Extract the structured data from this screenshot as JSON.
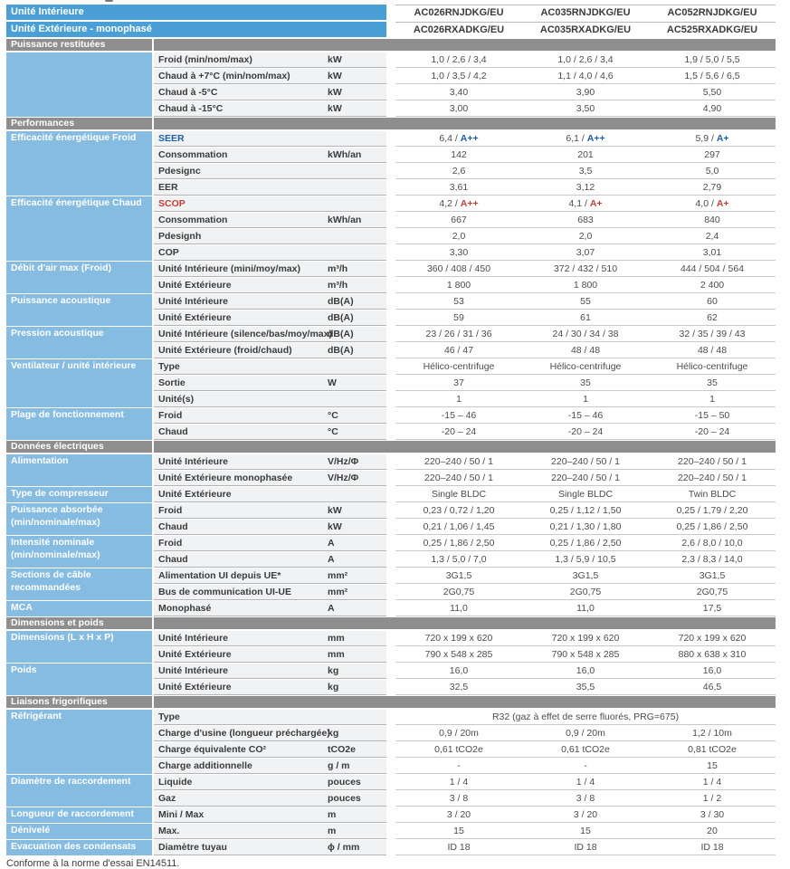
{
  "colors": {
    "header_blue": "#4AA0D6",
    "category_blue": "#86BCE2",
    "section_gray": "#8E8E8E",
    "seer_blue": "#1E5EA9",
    "scop_red": "#C2403A"
  },
  "header": {
    "indoor_label": "Unité Intérieure",
    "outdoor_label": "Unité Extérieure - monophasé",
    "indoor_models": [
      "AC026RNJDKG/EU",
      "AC035RNJDKG/EU",
      "AC052RNJDKG/EU"
    ],
    "outdoor_models": [
      "AC026RXADKG/EU",
      "AC035RXADKG/EU",
      "AC525RXADKG/EU"
    ]
  },
  "footer_note": "Conforme à la norme d'essai EN14511.",
  "sections": [
    {
      "title": "Puissance restituées",
      "groups": [
        {
          "category": "",
          "rows": [
            {
              "label": "Froid (min/nom/max)",
              "unit": "kW",
              "values": [
                "1,0 / 2,6 / 3,4",
                "1,0 / 2,6 / 3,4",
                "1,9 / 5,0 / 5,5"
              ]
            },
            {
              "label": "Chaud à +7°C (min/nom/max)",
              "unit": "kW",
              "values": [
                "1,0 / 3,5 / 4,2",
                "1,1 / 4,0 / 4,6",
                "1,5 / 5,6 / 6,5"
              ]
            },
            {
              "label": "Chaud à -5°C",
              "unit": "kW",
              "values": [
                "3,40",
                "3,90",
                "5,50"
              ]
            },
            {
              "label": "Chaud à -15°C",
              "unit": "kW",
              "values": [
                "3,00",
                "3,50",
                "4,90"
              ]
            }
          ]
        }
      ]
    },
    {
      "title": "Performances",
      "groups": [
        {
          "category": "Efficacité énergétique Froid",
          "rows": [
            {
              "label": "SEER",
              "label_class": "seer-label",
              "unit": "",
              "value_pre": [
                "6,4",
                "6,1",
                "5,9"
              ],
              "grades": [
                "A++",
                "A++",
                "A+"
              ],
              "grade_class": "seer"
            },
            {
              "label": "Consommation",
              "unit": "kWh/an",
              "values": [
                "142",
                "201",
                "297"
              ]
            },
            {
              "label": "Pdesignc",
              "unit": "",
              "values": [
                "2,6",
                "3,5",
                "5,0"
              ]
            },
            {
              "label": "EER",
              "unit": "",
              "values": [
                "3,61",
                "3,12",
                "2,79"
              ]
            }
          ]
        },
        {
          "category": "Efficacité énergétique Chaud",
          "rows": [
            {
              "label": "SCOP",
              "label_class": "scop-label",
              "unit": "",
              "value_pre": [
                "4,2",
                "4,1",
                "4,0"
              ],
              "grades": [
                "A++",
                "A+",
                "A+"
              ],
              "grade_class": "scop"
            },
            {
              "label": "Consommation",
              "unit": "kWh/an",
              "values": [
                "667",
                "683",
                "840"
              ]
            },
            {
              "label": "Pdesignh",
              "unit": "",
              "values": [
                "2,0",
                "2,0",
                "2,4"
              ]
            },
            {
              "label": "COP",
              "unit": "",
              "values": [
                "3,30",
                "3,07",
                "3,01"
              ]
            }
          ]
        },
        {
          "category": "Débit d'air max (Froid)",
          "rows": [
            {
              "label": "Unité Intérieure (mini/moy/max)",
              "unit": "m³/h",
              "values": [
                "360 / 408 / 450",
                "372 / 432 / 510",
                "444 / 504 / 564"
              ]
            },
            {
              "label": "Unité Extérieure",
              "unit": "m³/h",
              "values": [
                "1 800",
                "1 800",
                "2 400"
              ]
            }
          ]
        },
        {
          "category": "Puissance acoustique",
          "rows": [
            {
              "label": "Unité Intérieure",
              "unit": "dB(A)",
              "values": [
                "53",
                "55",
                "60"
              ]
            },
            {
              "label": "Unité Extérieure",
              "unit": "dB(A)",
              "values": [
                "59",
                "61",
                "62"
              ]
            }
          ]
        },
        {
          "category": "Pression acoustique",
          "rows": [
            {
              "label": "Unité Intérieure (silence/bas/moy/max)",
              "unit": "dB(A)",
              "values": [
                "23 / 26 / 31 / 36",
                "24 / 30 / 34 / 38",
                "32 / 35 / 39 / 43"
              ]
            },
            {
              "label": "Unité Extérieure (froid/chaud)",
              "unit": "dB(A)",
              "values": [
                "46 / 47",
                "48 / 48",
                "48 / 48"
              ]
            }
          ]
        },
        {
          "category": "Ventilateur / unité intérieure",
          "rows": [
            {
              "label": "Type",
              "unit": "",
              "values": [
                "Hélico-centrifuge",
                "Hélico-centrifuge",
                "Hélico-centrifuge"
              ]
            },
            {
              "label": "Sortie",
              "unit": "W",
              "values": [
                "37",
                "35",
                "35"
              ]
            },
            {
              "label": "Unité(s)",
              "unit": "",
              "values": [
                "1",
                "1",
                "1"
              ]
            }
          ]
        },
        {
          "category": "Plage de fonctionnement",
          "rows": [
            {
              "label": "Froid",
              "unit": "°C",
              "values": [
                "-15 – 46",
                "-15 – 46",
                "-15 – 50"
              ]
            },
            {
              "label": "Chaud",
              "unit": "°C",
              "values": [
                "-20 – 24",
                "-20 – 24",
                "-20 – 24"
              ]
            }
          ]
        }
      ]
    },
    {
      "title": "Données électriques",
      "groups": [
        {
          "category": "Alimentation",
          "rows": [
            {
              "label": "Unité Intérieure",
              "unit": "V/Hz/Φ",
              "values": [
                "220–240 / 50 / 1",
                "220–240 / 50 / 1",
                "220–240 / 50 / 1"
              ]
            },
            {
              "label": "Unité Extérieure monophasée",
              "unit": "V/Hz/Φ",
              "values": [
                "220–240 / 50 / 1",
                "220–240 / 50 / 1",
                "220–240 / 50 / 1"
              ]
            }
          ]
        },
        {
          "category": "Type de compresseur",
          "rows": [
            {
              "label": "Unité Extérieure",
              "unit": "",
              "values": [
                "Single BLDC",
                "Single BLDC",
                "Twin BLDC"
              ]
            }
          ]
        },
        {
          "category": "Puissance absorbée (min/nominale/max)",
          "rows": [
            {
              "label": "Froid",
              "unit": "kW",
              "values": [
                "0,23 / 0,72 / 1,20",
                "0,25 / 1,12 / 1,50",
                "0,25 / 1,79 / 2,20"
              ]
            },
            {
              "label": "Chaud",
              "unit": "kW",
              "values": [
                "0,21 / 1,06 / 1,45",
                "0,21 / 1,30 / 1,80",
                "0,25 / 1,86 / 2,50"
              ]
            }
          ]
        },
        {
          "category": "Intensité nominale (min/nominale/max)",
          "rows": [
            {
              "label": "Froid",
              "unit": "A",
              "values": [
                "0,25 / 1,86 / 2,50",
                "0,25 / 1,86 / 2,50",
                "2,6 / 8,0 / 10,0"
              ]
            },
            {
              "label": "Chaud",
              "unit": "A",
              "values": [
                "1,3 / 5,0 / 7,0",
                "1,3 / 5,9 / 10,5",
                "2,3 / 8,3 / 14,0"
              ]
            }
          ]
        },
        {
          "category": "Sections de câble recommandées",
          "rows": [
            {
              "label": "Alimentation UI depuis UE*",
              "unit": "mm²",
              "values": [
                "3G1,5",
                "3G1,5",
                "3G1,5"
              ]
            },
            {
              "label": "Bus de communication UI-UE",
              "unit": "mm²",
              "values": [
                "2G0,75",
                "2G0,75",
                "2G0,75"
              ]
            }
          ]
        },
        {
          "category": "MCA",
          "rows": [
            {
              "label": "Monophasé",
              "unit": "A",
              "values": [
                "11,0",
                "11,0",
                "17,5"
              ]
            }
          ]
        }
      ]
    },
    {
      "title": "Dimensions et poids",
      "groups": [
        {
          "category": "Dimensions  (L x H x P)",
          "rows": [
            {
              "label": "Unité Intérieure",
              "unit": "mm",
              "values": [
                "720 x 199 x 620",
                "720 x 199 x 620",
                "720 x 199 x 620"
              ]
            },
            {
              "label": "Unité Extérieure",
              "unit": "mm",
              "values": [
                "790 x 548 x 285",
                "790 x 548 x 285",
                "880 x 638 x 310"
              ]
            }
          ]
        },
        {
          "category": "Poids",
          "rows": [
            {
              "label": "Unité Intérieure",
              "unit": "kg",
              "values": [
                "16,0",
                "16,0",
                "16,0"
              ]
            },
            {
              "label": "Unité Extérieure",
              "unit": "kg",
              "values": [
                "32,5",
                "35,5",
                "46,5"
              ]
            }
          ]
        }
      ]
    },
    {
      "title": "Liaisons frigorifiques",
      "groups": [
        {
          "category": "Réfrigérant",
          "rows": [
            {
              "label": "Type",
              "unit": "",
              "span_value": "R32 (gaz à effet de serre fluorés, PRG=675)"
            },
            {
              "label": "Charge d'usine (longueur préchargée)",
              "unit": "kg",
              "values": [
                "0,9 / 20m",
                "0,9 / 20m",
                "1,2 / 10m"
              ]
            },
            {
              "label": "Charge équivalente CO²",
              "unit": "tCO2e",
              "values": [
                "0,61 tCO2e",
                "0,61 tCO2e",
                "0,81 tCO2e"
              ]
            },
            {
              "label": "Charge additionnelle",
              "unit": "g / m",
              "values": [
                "-",
                "-",
                "15"
              ]
            }
          ]
        },
        {
          "category": "Diamètre de raccordement",
          "rows": [
            {
              "label": "Liquide",
              "unit": "pouces",
              "values": [
                "1 / 4",
                "1 / 4",
                "1 / 4"
              ]
            },
            {
              "label": "Gaz",
              "unit": "pouces",
              "values": [
                "3 / 8",
                "3 / 8",
                "1 / 2"
              ]
            }
          ]
        },
        {
          "category": "Longueur de raccordement",
          "rows": [
            {
              "label": "Mini / Max",
              "unit": "m",
              "values": [
                "3 / 20",
                "3 / 20",
                "3 / 30"
              ]
            }
          ]
        },
        {
          "category": "Dénivelé",
          "rows": [
            {
              "label": "Max.",
              "unit": "m",
              "values": [
                "15",
                "15",
                "20"
              ]
            }
          ]
        },
        {
          "category": "Evacuation des condensats",
          "rows": [
            {
              "label": "Diamètre tuyau",
              "unit": "ϕ / mm",
              "values": [
                "ID 18",
                "ID 18",
                "ID 18"
              ]
            }
          ]
        }
      ]
    }
  ]
}
